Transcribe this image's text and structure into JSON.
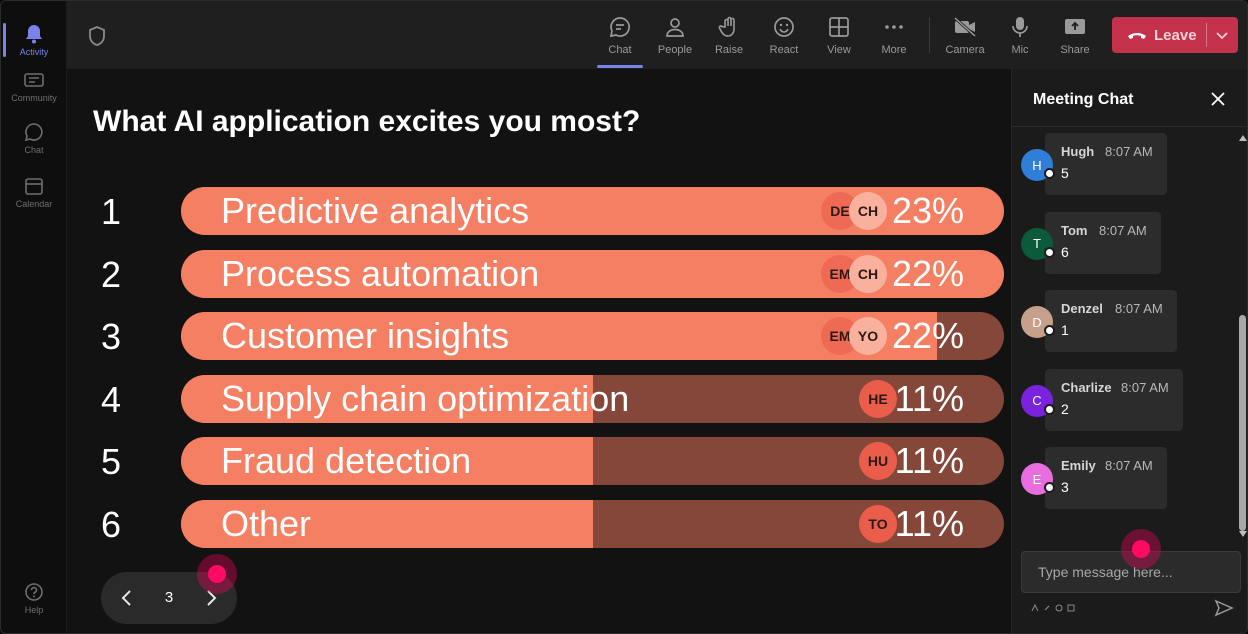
{
  "rail": {
    "items": [
      {
        "label": "Activity",
        "icon": "bell-icon",
        "active": true
      },
      {
        "label": "Community",
        "icon": "community-icon",
        "active": false
      },
      {
        "label": "Chat",
        "icon": "chat-icon",
        "active": false
      },
      {
        "label": "Calendar",
        "icon": "calendar-icon",
        "active": false
      }
    ],
    "help": {
      "label": "Help",
      "icon": "help-icon"
    }
  },
  "toolbar": {
    "buttons": [
      {
        "label": "Chat",
        "icon": "chat-icon",
        "active": true
      },
      {
        "label": "People",
        "icon": "people-icon",
        "active": false
      },
      {
        "label": "Raise",
        "icon": "hand-icon",
        "active": false
      },
      {
        "label": "React",
        "icon": "smile-icon",
        "active": false
      },
      {
        "label": "View",
        "icon": "grid-icon",
        "active": false
      },
      {
        "label": "More",
        "icon": "more-icon",
        "active": false
      },
      {
        "label": "Camera",
        "icon": "camera-off-icon",
        "active": false
      },
      {
        "label": "Mic",
        "icon": "mic-icon",
        "active": false
      },
      {
        "label": "Share",
        "icon": "share-icon",
        "active": false
      }
    ],
    "leave_label": "Leave"
  },
  "poll": {
    "question": "What AI application excites you most?",
    "options": [
      {
        "rank": "1",
        "label": "Predictive analytics",
        "percent": "23%",
        "fill": 1.0,
        "avatars": [
          "DE",
          "CH"
        ]
      },
      {
        "rank": "2",
        "label": "Process automation",
        "percent": "22%",
        "fill": 1.0,
        "avatars": [
          "EM",
          "CH"
        ]
      },
      {
        "rank": "3",
        "label": "Customer insights",
        "percent": "22%",
        "fill": 0.918,
        "avatars": [
          "EM",
          "YO"
        ]
      },
      {
        "rank": "4",
        "label": "Supply chain optimization",
        "percent": "11%",
        "fill": 0.5,
        "avatars": [
          "HE"
        ]
      },
      {
        "rank": "5",
        "label": "Fraud detection",
        "percent": "11%",
        "fill": 0.5,
        "avatars": [
          "HU"
        ]
      },
      {
        "rank": "6",
        "label": "Other",
        "percent": "11%",
        "fill": 0.5,
        "avatars": [
          "TO"
        ]
      }
    ],
    "page": "3"
  },
  "chat": {
    "title": "Meeting Chat",
    "messages": [
      {
        "initial": "H",
        "name": "Hugh",
        "time": "8:07 AM",
        "text": "5",
        "color": "#2f7ed8"
      },
      {
        "initial": "T",
        "name": "Tom",
        "time": "8:07 AM",
        "text": "6",
        "color": "#0b5a3c"
      },
      {
        "initial": "D",
        "name": "Denzel",
        "time": "8:07 AM",
        "text": "1",
        "color": "#c7a08c"
      },
      {
        "initial": "C",
        "name": "Charlize",
        "time": "8:07 AM",
        "text": "2",
        "color": "#7a22dd"
      },
      {
        "initial": "E",
        "name": "Emily",
        "time": "8:07 AM",
        "text": "3",
        "color": "#e86ee0"
      }
    ],
    "compose_placeholder": "Type message here..."
  },
  "colors": {
    "accent": "#7b83eb",
    "bar_fill": "#f47f62",
    "bar_track": "#84473a",
    "leave": "#c4314b"
  }
}
